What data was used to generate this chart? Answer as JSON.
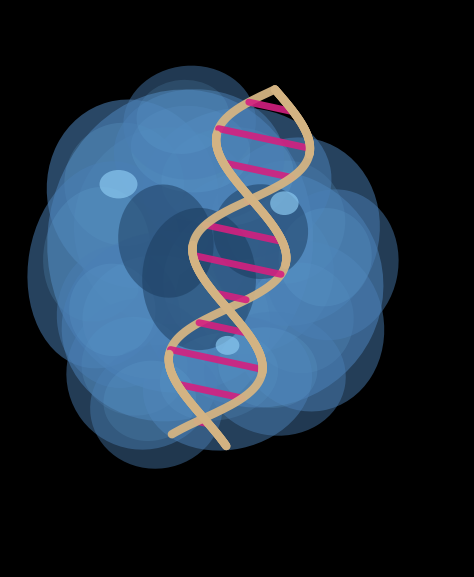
{
  "background_color": "#000000",
  "protein_color": "#4a7fb5",
  "protein_highlight": "#6aafde",
  "protein_shadow": "#1a3a5c",
  "dna_backbone_color": "#d4b483",
  "dna_basepair_color": "#d42080",
  "highlight_color": "#8ac8f0",
  "fig_width": 4.74,
  "fig_height": 5.77,
  "dpi": 100,
  "num_basepairs": 11,
  "strand_linewidth": 6,
  "basepair_linewidth": 5,
  "n_turns": 1.6,
  "amplitude": 0.1,
  "x_axis_start": 0.58,
  "y_axis_start": 0.92,
  "x_axis_end": 0.42,
  "y_axis_end": 0.18
}
